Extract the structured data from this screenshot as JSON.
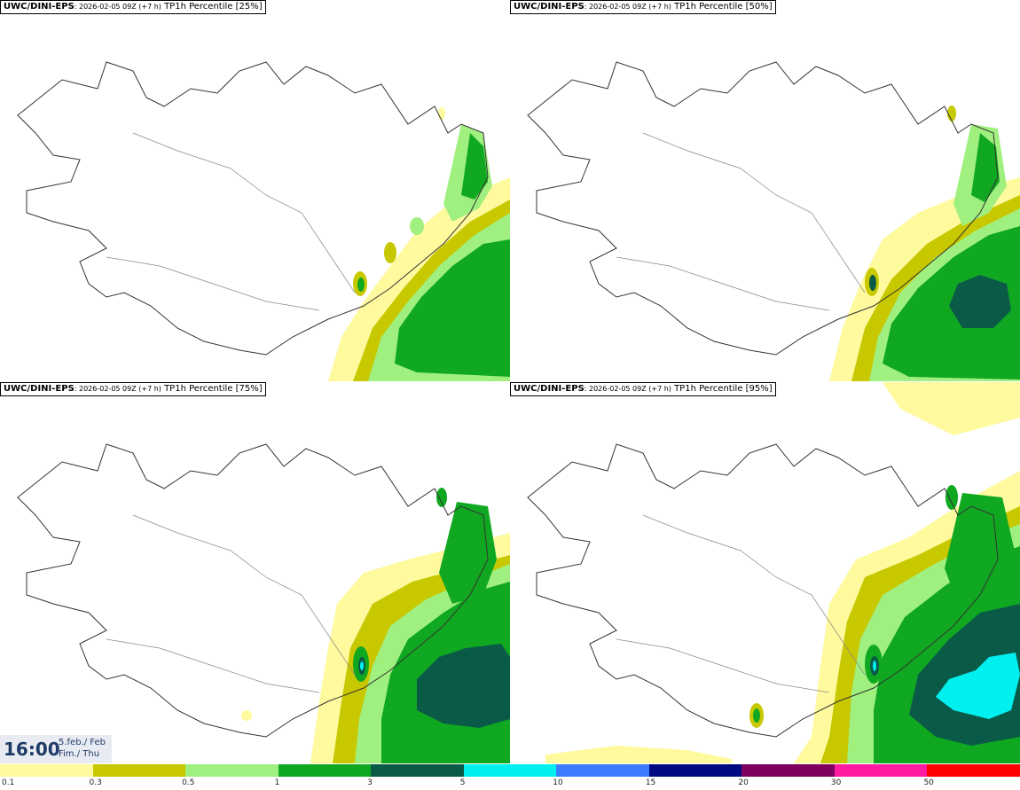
{
  "panels": [
    {
      "model": "UWC/DINI-EPS",
      "run": ": 2026-02-05 09Z (+7 h)",
      "field": " TP1h Percentile [25%]"
    },
    {
      "model": "UWC/DINI-EPS",
      "run": ": 2026-02-05 09Z (+7 h)",
      "field": " TP1h Percentile [50%]"
    },
    {
      "model": "UWC/DINI-EPS",
      "run": ": 2026-02-05 09Z (+7 h)",
      "field": " TP1h Percentile [75%]"
    },
    {
      "model": "UWC/DINI-EPS",
      "run": ": 2026-02-05 09Z (+7 h)",
      "field": " TP1h Percentile [95%]"
    }
  ],
  "valid_time": {
    "time": "16:00",
    "date_line1": "5.feb./ Feb",
    "date_line2": "Fim./ Thu"
  },
  "legend": {
    "colors": [
      "#fffa9e",
      "#c8c800",
      "#a0f080",
      "#10a820",
      "#0a5a48",
      "#00f0f0",
      "#3c7cff",
      "#000a80",
      "#800060",
      "#ff1aa0",
      "#ff0000"
    ],
    "ticks": [
      "0.1",
      "0.3",
      "0.5",
      "1",
      "3",
      "5",
      "10",
      "15",
      "20",
      "30",
      "50"
    ]
  }
}
